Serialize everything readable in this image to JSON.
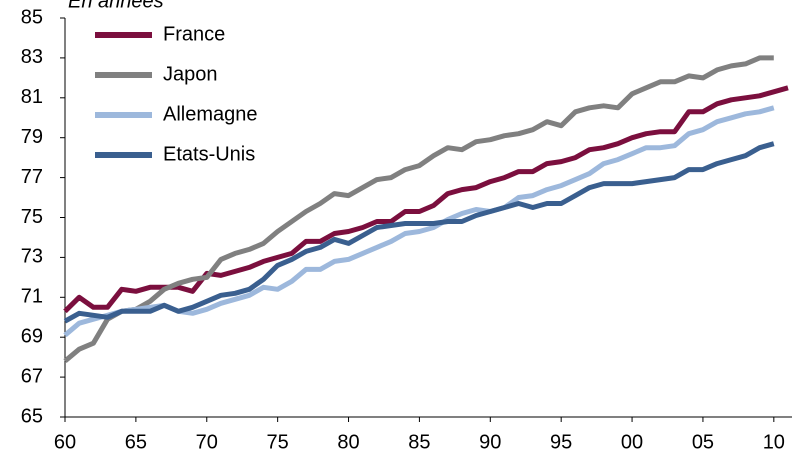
{
  "chart_data": {
    "type": "line",
    "title": "En années",
    "x": [
      60,
      61,
      62,
      63,
      64,
      65,
      66,
      67,
      68,
      69,
      70,
      71,
      72,
      73,
      74,
      75,
      76,
      77,
      78,
      79,
      80,
      81,
      82,
      83,
      84,
      85,
      86,
      87,
      88,
      89,
      90,
      91,
      92,
      93,
      94,
      95,
      96,
      97,
      98,
      99,
      100,
      101,
      102,
      103,
      104,
      105,
      106,
      107,
      108,
      109,
      110,
      111
    ],
    "series": [
      {
        "name": "France",
        "color": "#7b0f3e",
        "values": [
          70.3,
          71.0,
          70.5,
          70.5,
          71.4,
          71.3,
          71.5,
          71.5,
          71.5,
          71.3,
          72.2,
          72.1,
          72.3,
          72.5,
          72.8,
          73.0,
          73.2,
          73.8,
          73.8,
          74.2,
          74.3,
          74.5,
          74.8,
          74.8,
          75.3,
          75.3,
          75.6,
          76.2,
          76.4,
          76.5,
          76.8,
          77.0,
          77.3,
          77.3,
          77.7,
          77.8,
          78.0,
          78.4,
          78.5,
          78.7,
          79.0,
          79.2,
          79.3,
          79.3,
          80.3,
          80.3,
          80.7,
          80.9,
          81.0,
          81.1,
          81.3,
          81.5
        ]
      },
      {
        "name": "Japon",
        "color": "#808080",
        "values": [
          67.8,
          68.4,
          68.7,
          69.9,
          70.3,
          70.4,
          70.8,
          71.4,
          71.7,
          71.9,
          72.0,
          72.9,
          73.2,
          73.4,
          73.7,
          74.3,
          74.8,
          75.3,
          75.7,
          76.2,
          76.1,
          76.5,
          76.9,
          77.0,
          77.4,
          77.6,
          78.1,
          78.5,
          78.4,
          78.8,
          78.9,
          79.1,
          79.2,
          79.4,
          79.8,
          79.6,
          80.3,
          80.5,
          80.6,
          80.5,
          81.2,
          81.5,
          81.8,
          81.8,
          82.1,
          82.0,
          82.4,
          82.6,
          82.7,
          83.0,
          83.0,
          null
        ]
      },
      {
        "name": "Allemagne",
        "color": "#9db8dc",
        "values": [
          69.1,
          69.7,
          69.9,
          70.1,
          70.3,
          70.4,
          70.5,
          70.6,
          70.3,
          70.2,
          70.4,
          70.7,
          70.9,
          71.1,
          71.5,
          71.4,
          71.8,
          72.4,
          72.4,
          72.8,
          72.9,
          73.2,
          73.5,
          73.8,
          74.2,
          74.3,
          74.5,
          74.9,
          75.2,
          75.4,
          75.3,
          75.5,
          76.0,
          76.1,
          76.4,
          76.6,
          76.9,
          77.2,
          77.7,
          77.9,
          78.2,
          78.5,
          78.5,
          78.6,
          79.2,
          79.4,
          79.8,
          80.0,
          80.2,
          80.3,
          80.5,
          null
        ]
      },
      {
        "name": "Etats-Unis",
        "color": "#3a5f8f",
        "values": [
          69.8,
          70.2,
          70.1,
          70.0,
          70.3,
          70.3,
          70.3,
          70.6,
          70.3,
          70.5,
          70.8,
          71.1,
          71.2,
          71.4,
          71.9,
          72.6,
          72.9,
          73.3,
          73.5,
          73.9,
          73.7,
          74.1,
          74.5,
          74.6,
          74.7,
          74.7,
          74.7,
          74.8,
          74.8,
          75.1,
          75.3,
          75.5,
          75.7,
          75.5,
          75.7,
          75.7,
          76.1,
          76.5,
          76.7,
          76.7,
          76.7,
          76.8,
          76.9,
          77.0,
          77.4,
          77.4,
          77.7,
          77.9,
          78.1,
          78.5,
          78.7,
          null
        ]
      }
    ],
    "xlim": [
      60,
      111
    ],
    "xticks": [
      60,
      65,
      70,
      75,
      80,
      85,
      90,
      95,
      {
        "value": 100,
        "label": "00"
      },
      {
        "value": 105,
        "label": "05"
      },
      {
        "value": 110,
        "label": "10"
      }
    ],
    "ylim": [
      65,
      85
    ],
    "yticks": [
      65,
      67,
      69,
      71,
      73,
      75,
      77,
      79,
      81,
      83,
      85
    ],
    "grid": false,
    "legend": "upper left"
  }
}
